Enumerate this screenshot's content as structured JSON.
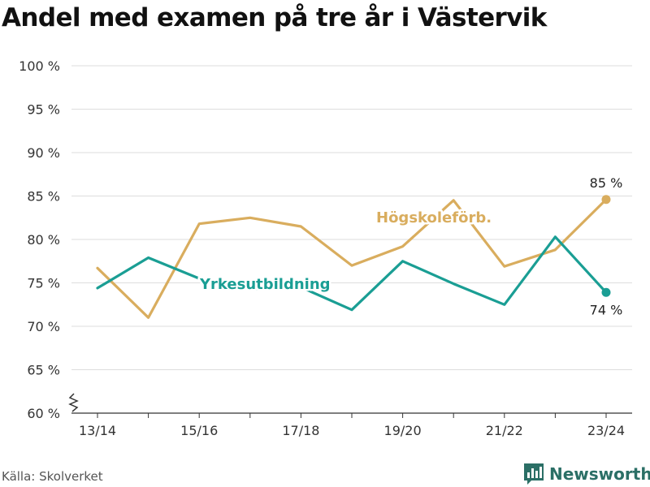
{
  "title": "Andel med examen på tre år i Västervik",
  "source": "Källa: Skolverket",
  "brand": {
    "name": "Newsworthy",
    "icon": "bar-chart-logo-icon"
  },
  "colors": {
    "hogskole": "#d9ad5e",
    "yrkes": "#1a9e94",
    "grid": "#dddddd",
    "brand": "#2b6f66"
  },
  "chart_data": {
    "type": "line",
    "title": "Andel med examen på tre år i Västervik",
    "x": [
      "13/14",
      "14/15",
      "15/16",
      "16/17",
      "17/18",
      "18/19",
      "19/20",
      "20/21",
      "21/22",
      "22/23",
      "23/24"
    ],
    "x_tick_labels": [
      "13/14",
      "15/16",
      "17/18",
      "19/20",
      "21/22",
      "23/24"
    ],
    "ylim": [
      60,
      100
    ],
    "y_ticks": [
      60,
      65,
      70,
      75,
      80,
      85,
      90,
      95,
      100
    ],
    "y_tick_labels": [
      "60 %",
      "65 %",
      "70 %",
      "75 %",
      "80 %",
      "85 %",
      "90 %",
      "95 %",
      "100 %"
    ],
    "y_axis_break": true,
    "grid": true,
    "series": [
      {
        "name": "Högskoleförb.",
        "color": "#d9ad5e",
        "values": [
          76.7,
          71.0,
          81.8,
          82.5,
          81.5,
          77.0,
          79.2,
          84.5,
          76.9,
          78.8,
          84.6
        ],
        "end_label": "85 %"
      },
      {
        "name": "Yrkesutbildning",
        "color": "#1a9e94",
        "values": [
          74.4,
          77.9,
          75.5,
          74.3,
          74.5,
          71.9,
          77.5,
          74.9,
          72.5,
          80.3,
          73.9
        ],
        "end_label": "74 %"
      }
    ]
  }
}
